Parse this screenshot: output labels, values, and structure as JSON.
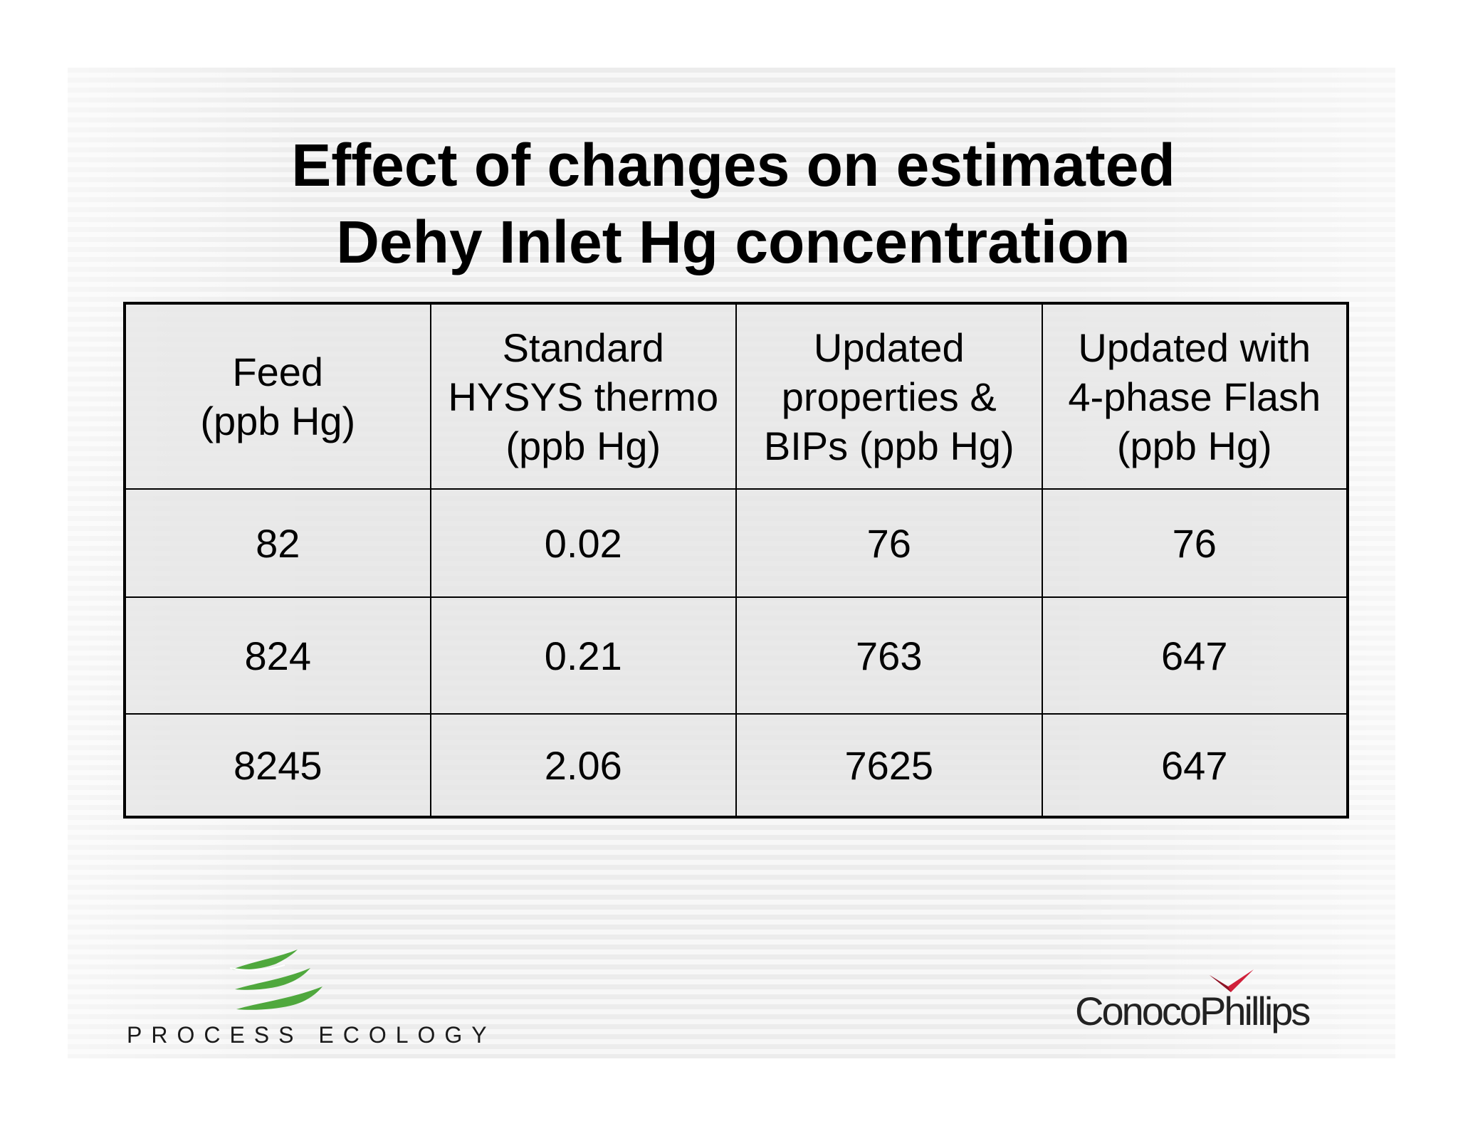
{
  "slide": {
    "title_line1": "Effect of changes on estimated",
    "title_line2": "Dehy Inlet Hg concentration"
  },
  "table": {
    "headers": [
      [
        "Feed",
        "(ppb Hg)"
      ],
      [
        "Standard",
        "HYSYS thermo",
        "(ppb Hg)"
      ],
      [
        "Updated",
        "properties &",
        "BIPs (ppb Hg)"
      ],
      [
        "Updated with",
        "4-phase Flash",
        "(ppb Hg)"
      ]
    ],
    "rows": [
      [
        "82",
        "0.02",
        "76",
        "76"
      ],
      [
        "824",
        "0.21",
        "763",
        "647"
      ],
      [
        "8245",
        "2.06",
        "7625",
        "647"
      ]
    ]
  },
  "logos": {
    "left": {
      "text": "PROCESS ECOLOGY",
      "icon": "process-ecology-swoosh-icon",
      "color": "#4fa83d"
    },
    "right": {
      "text": "ConocoPhillips",
      "icon": "conocophillips-wing-icon",
      "color": "#d0203a"
    }
  }
}
